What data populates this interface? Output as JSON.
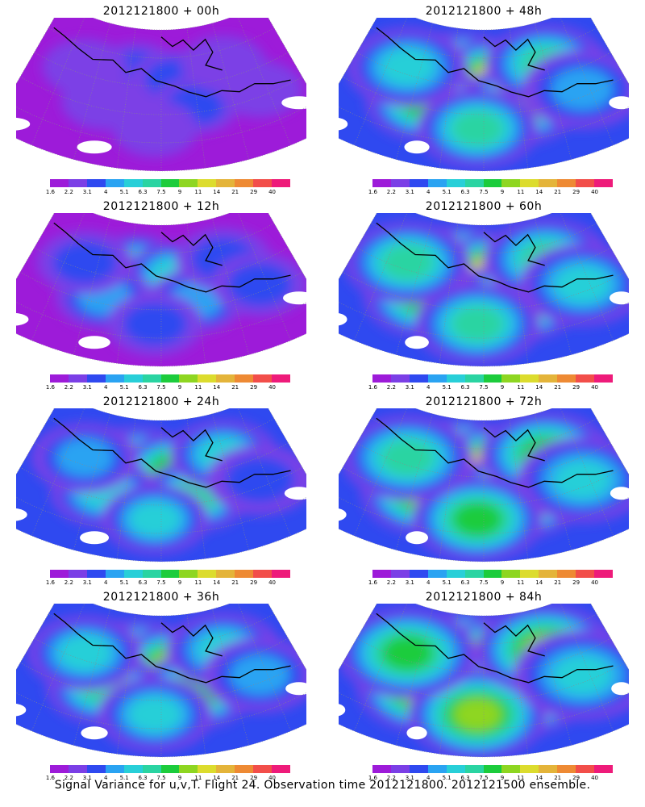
{
  "legend": {
    "labels": [
      "1.6",
      "2.2",
      "3.1",
      "4",
      "5.1",
      "6.3",
      "7.5",
      "9",
      "11",
      "14",
      "21",
      "29",
      "40"
    ],
    "colors": [
      "#9d1bd9",
      "#7b3fe6",
      "#2f49f0",
      "#2aa3f2",
      "#28cfd8",
      "#2ad4a2",
      "#1ccc3c",
      "#8ed621",
      "#dcdc2e",
      "#e4b43a",
      "#ee8a34",
      "#f24e4a",
      "#ee1b7a"
    ]
  },
  "panels": [
    {
      "title": "2012121800 + 00h",
      "intensity": 0.0
    },
    {
      "title": "2012121800 + 48h",
      "intensity": 0.67
    },
    {
      "title": "2012121800 + 12h",
      "intensity": 0.2
    },
    {
      "title": "2012121800 + 60h",
      "intensity": 0.75
    },
    {
      "title": "2012121800 + 24h",
      "intensity": 0.4
    },
    {
      "title": "2012121800 + 72h",
      "intensity": 0.85
    },
    {
      "title": "2012121800 + 36h",
      "intensity": 0.55
    },
    {
      "title": "2012121800 + 84h",
      "intensity": 1.0
    }
  ],
  "footer": "Signal Variance for u,v,T. Flight 24. Observation time 2012121800. 2012121500 ensemble."
}
